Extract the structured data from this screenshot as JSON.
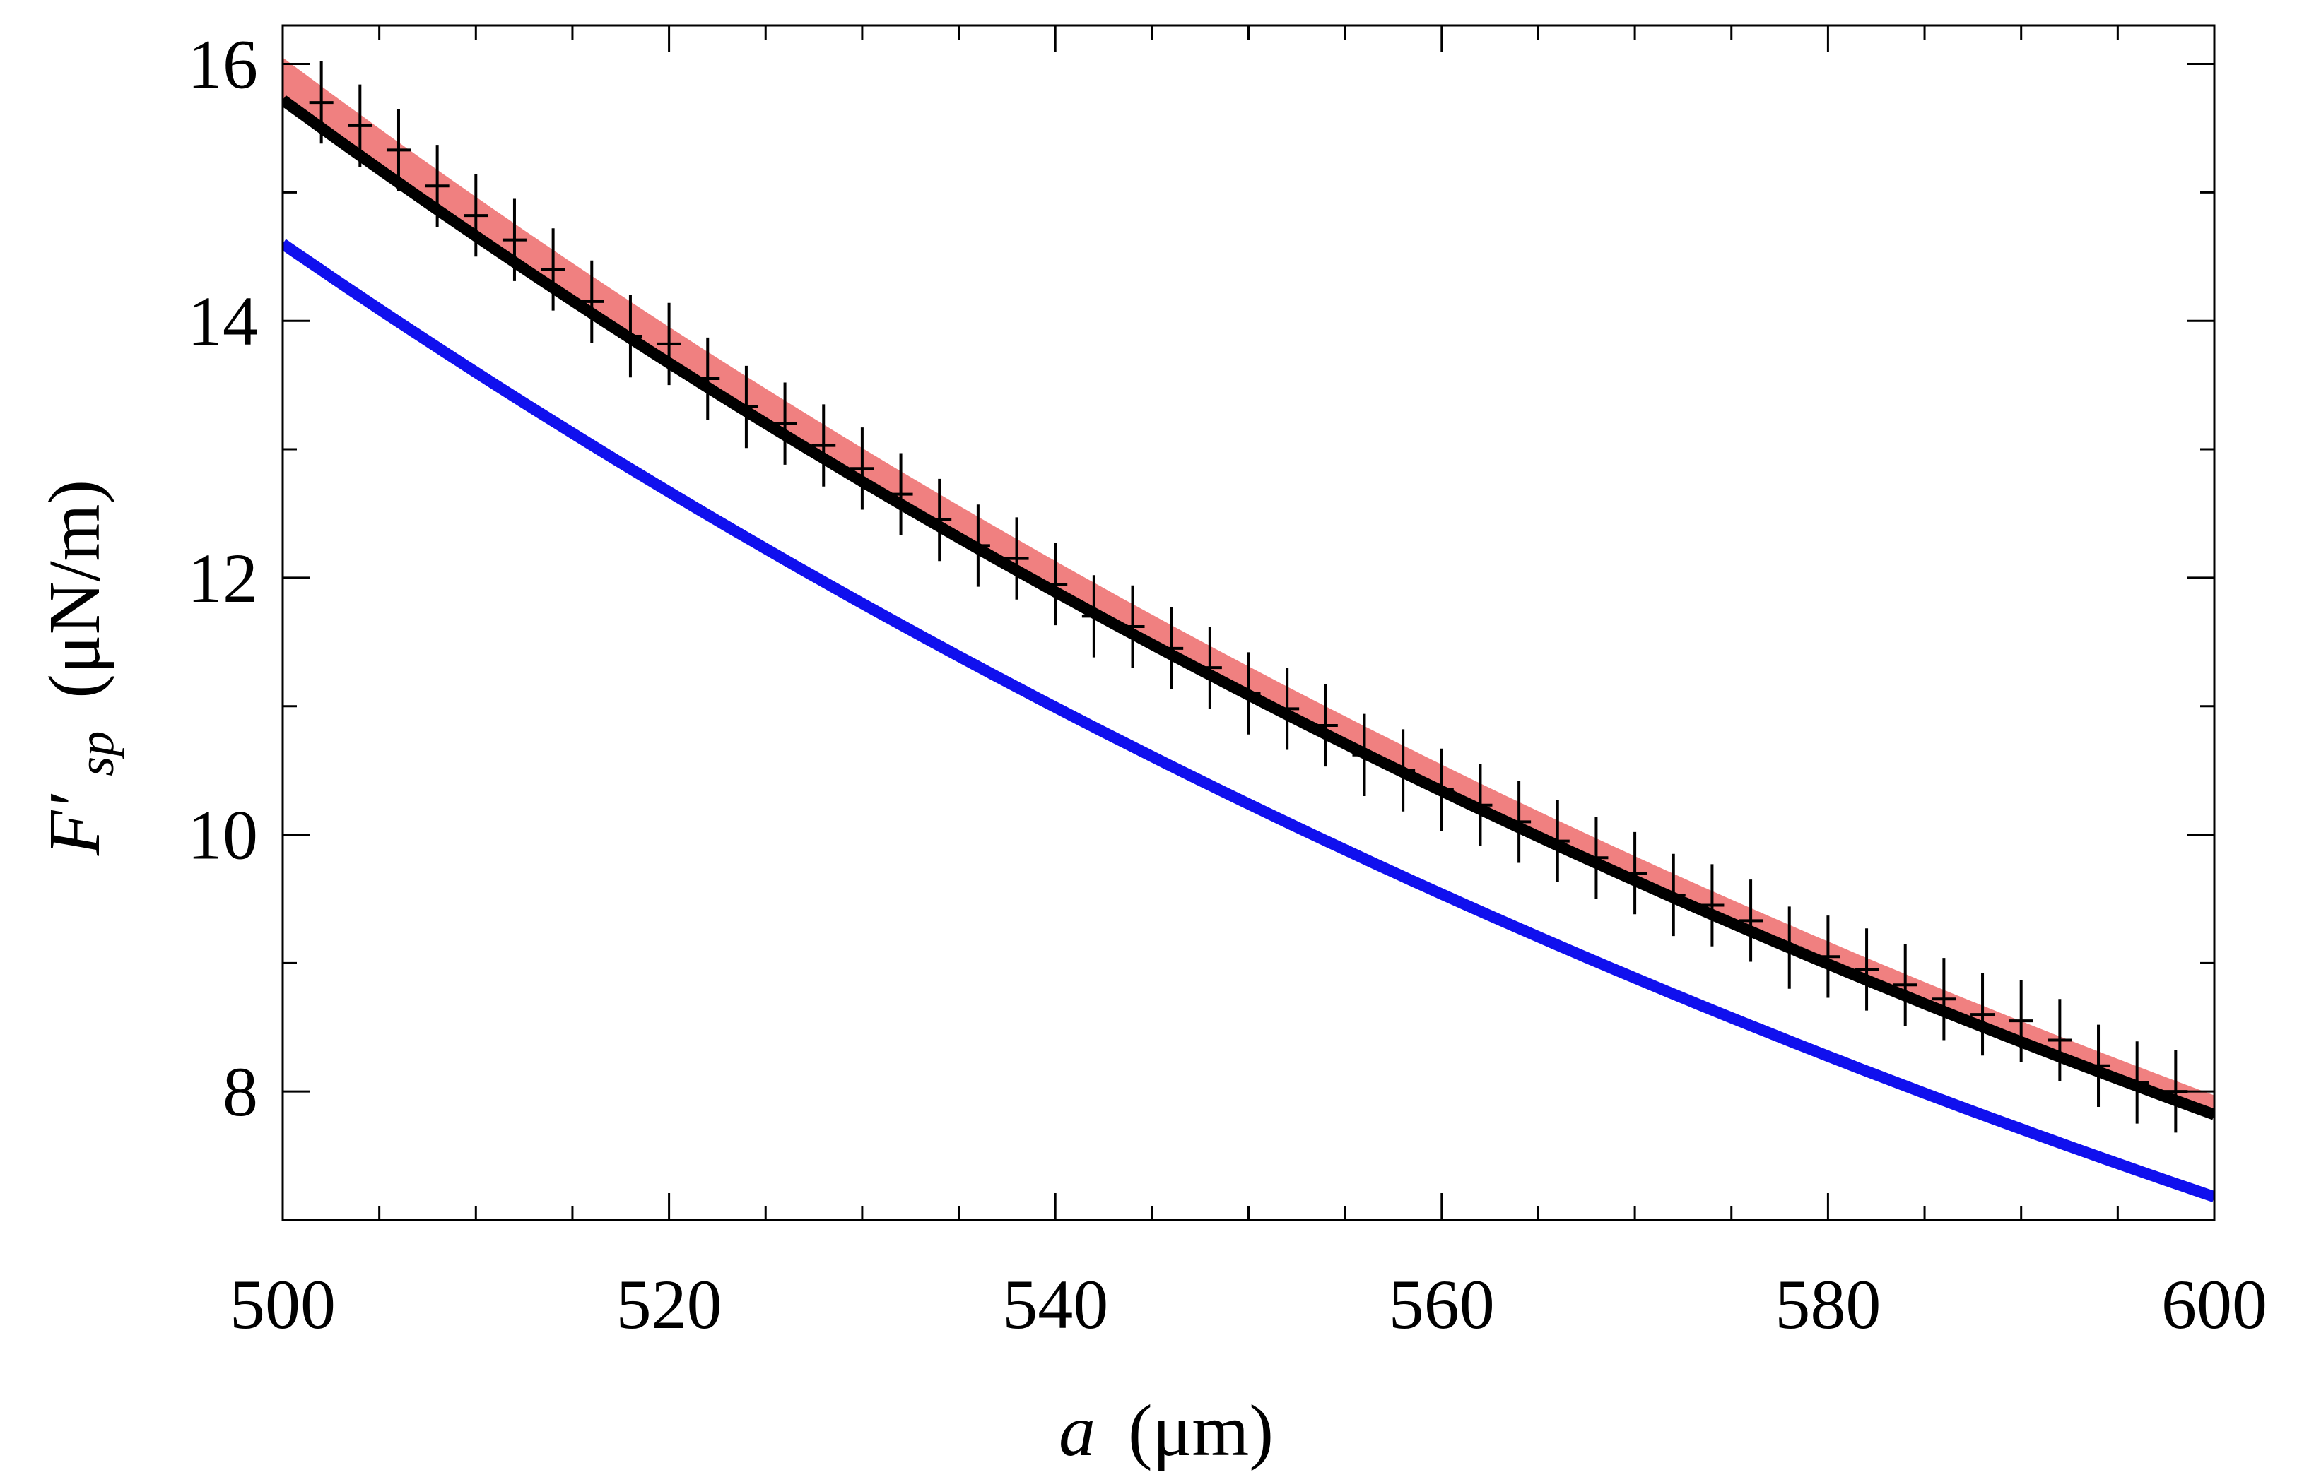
{
  "chart_data": {
    "type": "line",
    "title": "",
    "xlabel": {
      "symbol": "a",
      "unit": "(μm)"
    },
    "ylabel": {
      "symbol": "F′",
      "subscript": "sp",
      "unit": "(μN/m)"
    },
    "xlim": [
      500,
      600
    ],
    "ylim": [
      7.0,
      16.3
    ],
    "xticks": [
      500,
      520,
      540,
      560,
      580,
      600
    ],
    "yticks": [
      8,
      10,
      12,
      14,
      16
    ],
    "x_minor_step": 5,
    "y_minor_step": 1,
    "grid": false,
    "series": [
      {
        "name": "red band",
        "style": "band",
        "color": "#f08080",
        "x": [
          500,
          600
        ],
        "lower": [
          15.72,
          7.83
        ],
        "upper": [
          16.05,
          7.97
        ]
      },
      {
        "name": "black theory",
        "style": "line",
        "color": "#000000",
        "x": [
          500,
          600
        ],
        "y": [
          15.72,
          7.82
        ]
      },
      {
        "name": "blue theory",
        "style": "line",
        "color": "#1010ee",
        "x": [
          500,
          600
        ],
        "y": [
          14.6,
          7.18
        ]
      },
      {
        "name": "data",
        "style": "errorbars",
        "color": "#000000",
        "x": [
          502,
          504,
          506,
          508,
          510,
          512,
          514,
          516,
          518,
          520,
          522,
          524,
          526,
          528,
          530,
          532,
          534,
          536,
          538,
          540,
          542,
          544,
          546,
          548,
          550,
          552,
          554,
          556,
          558,
          560,
          562,
          564,
          566,
          568,
          570,
          572,
          574,
          576,
          578,
          580,
          582,
          584,
          586,
          588,
          590,
          592,
          594,
          596,
          598
        ],
        "y": [
          15.7,
          15.52,
          15.33,
          15.05,
          14.82,
          14.63,
          14.4,
          14.15,
          13.88,
          13.82,
          13.55,
          13.33,
          13.2,
          13.03,
          12.85,
          12.65,
          12.45,
          12.25,
          12.15,
          11.95,
          11.7,
          11.62,
          11.45,
          11.3,
          11.1,
          10.98,
          10.85,
          10.62,
          10.5,
          10.35,
          10.23,
          10.1,
          9.95,
          9.82,
          9.7,
          9.53,
          9.45,
          9.33,
          9.12,
          9.05,
          8.95,
          8.83,
          8.72,
          8.6,
          8.55,
          8.4,
          8.2,
          8.07,
          8.0
        ],
        "err": 0.32
      }
    ]
  }
}
